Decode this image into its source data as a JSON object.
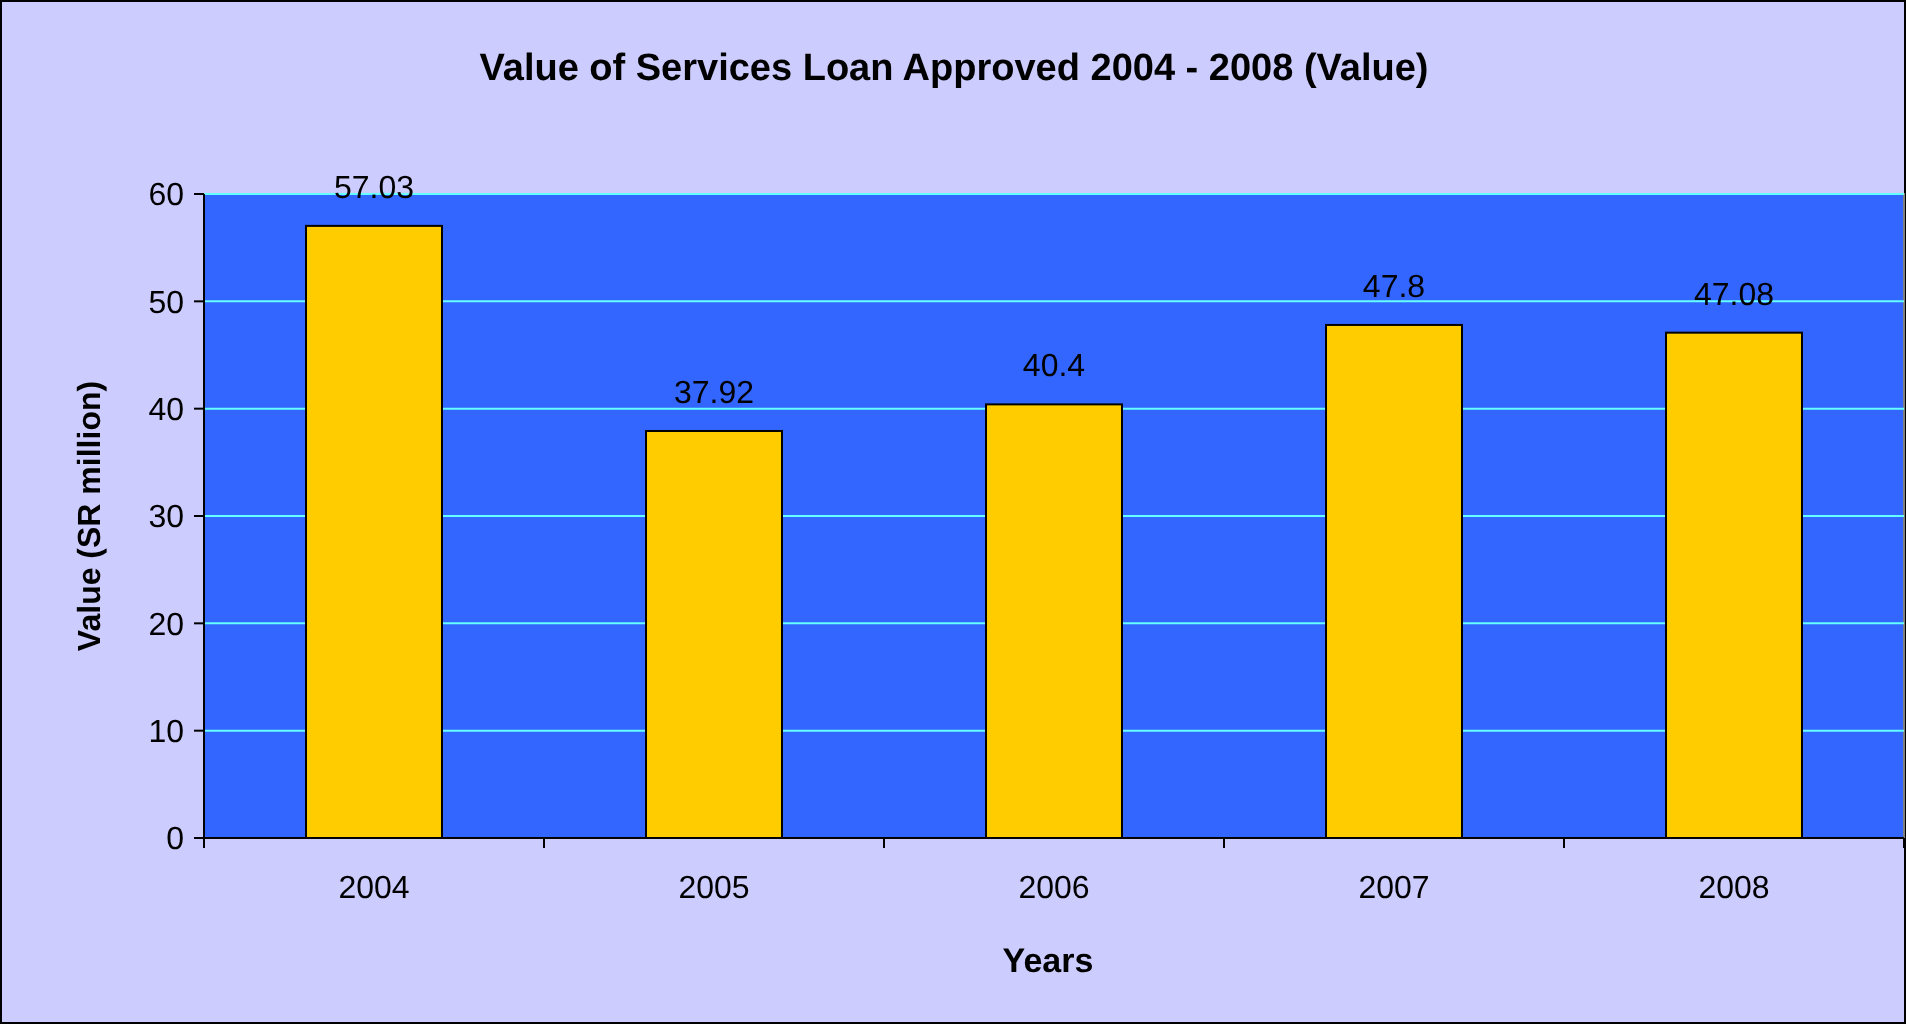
{
  "chart_data": {
    "type": "bar",
    "title": "Value of Services Loan Approved 2004 - 2008 (Value)",
    "xlabel": "Years",
    "ylabel": "Value (SR million)",
    "categories": [
      "2004",
      "2005",
      "2006",
      "2007",
      "2008"
    ],
    "values": [
      57.03,
      37.92,
      40.4,
      47.8,
      47.08
    ],
    "color": "#ffcc00",
    "ylim": [
      0,
      60
    ],
    "yticks": [
      0,
      10,
      20,
      30,
      40,
      50,
      60
    ],
    "grid": "y",
    "data_labels": true
  }
}
